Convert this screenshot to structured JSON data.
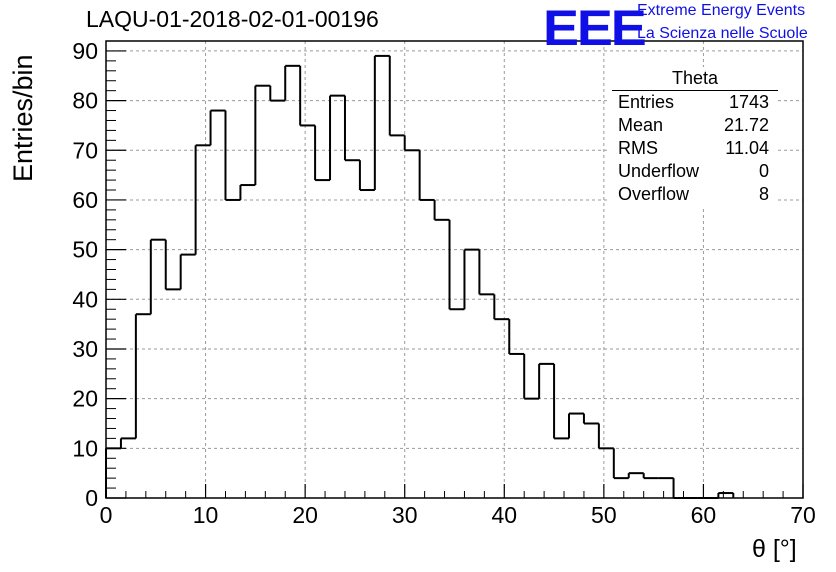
{
  "title": "LAQU-01-2018-02-01-00196",
  "logo": {
    "mark": "EEE",
    "line1": "Extreme Energy Events",
    "line2": "La Scienza nelle Scuole",
    "color": "#1010e6"
  },
  "stats_box": {
    "title": "Theta",
    "rows": [
      {
        "label": "Entries",
        "value": "1743"
      },
      {
        "label": "Mean",
        "value": "21.72"
      },
      {
        "label": "RMS",
        "value": "11.04"
      },
      {
        "label": "Underflow",
        "value": "0"
      },
      {
        "label": "Overflow",
        "value": "8"
      }
    ]
  },
  "chart_data": {
    "type": "bar",
    "histogram": true,
    "title": "LAQU-01-2018-02-01-00196",
    "xlabel": "θ [°]",
    "ylabel": "Entries/bin",
    "xlim": [
      0,
      70
    ],
    "ylim": [
      0,
      92
    ],
    "grid": true,
    "line_color": "#000000",
    "x_ticks": [
      0,
      10,
      20,
      30,
      40,
      50,
      60,
      70
    ],
    "y_ticks": [
      0,
      10,
      20,
      30,
      40,
      50,
      60,
      70,
      80,
      90
    ],
    "bin_edges": [
      0,
      1.5,
      3,
      4.5,
      6,
      7.5,
      9,
      10.5,
      12,
      13.5,
      15,
      16.5,
      18,
      19.5,
      21,
      22.5,
      24,
      25.5,
      27,
      28.5,
      30,
      31.5,
      33,
      34.5,
      36,
      37.5,
      39,
      40.5,
      42,
      43.5,
      45,
      46.5,
      48,
      49.5,
      51,
      52.5,
      54,
      55.5,
      57,
      58.5,
      60,
      61.5,
      63
    ],
    "values": [
      10,
      12,
      37,
      52,
      42,
      49,
      71,
      78,
      60,
      63,
      83,
      80,
      87,
      75,
      64,
      81,
      68,
      62,
      89,
      73,
      70,
      60,
      56,
      38,
      50,
      41,
      36,
      29,
      20,
      27,
      12,
      17,
      15,
      10,
      4,
      5,
      4,
      4,
      0,
      0,
      0,
      1
    ]
  }
}
